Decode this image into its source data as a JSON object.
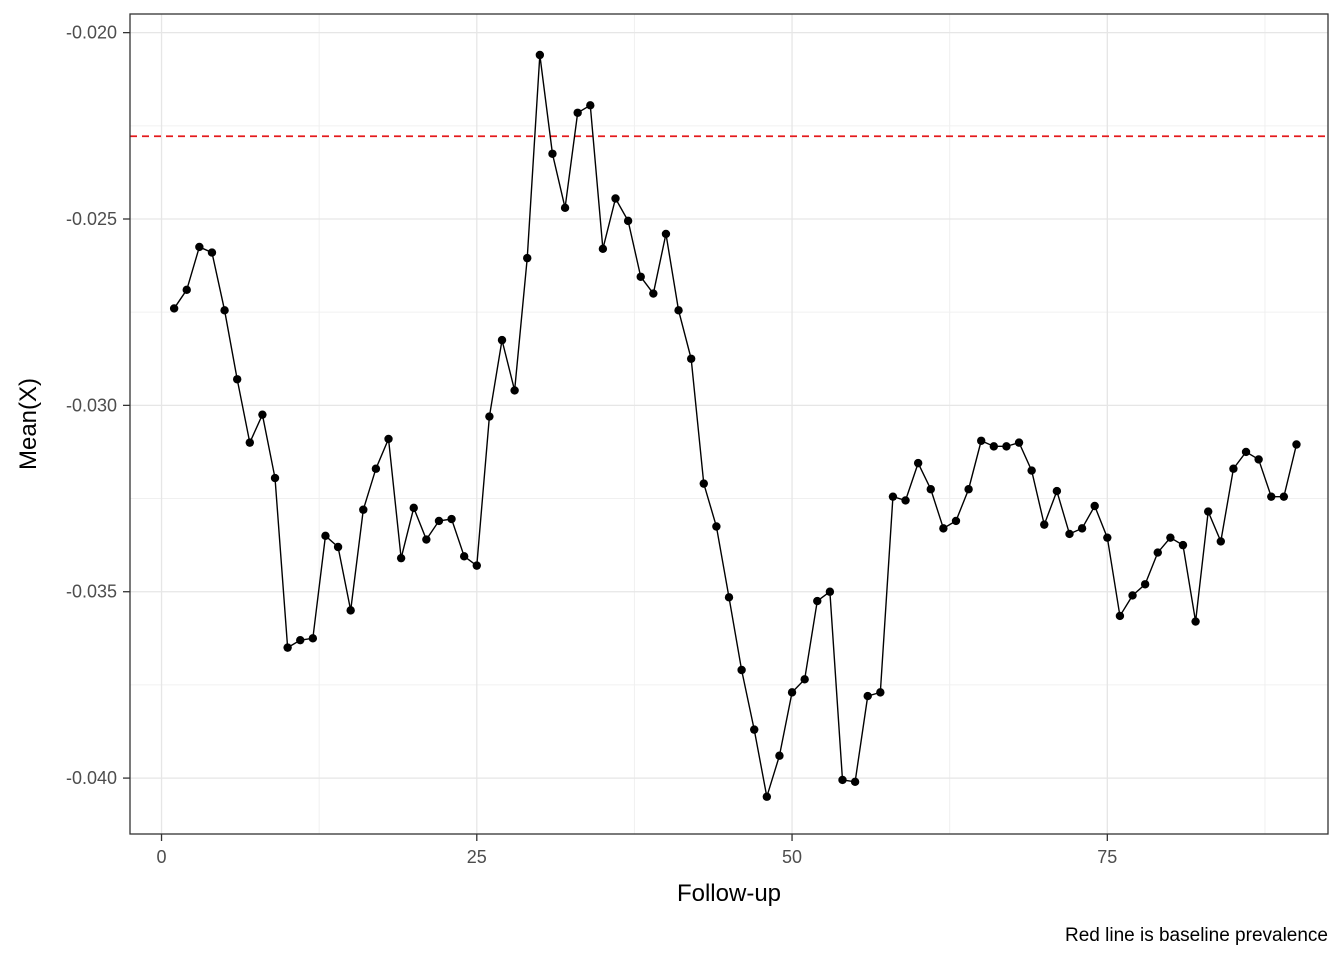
{
  "chart_data": {
    "type": "line",
    "xlabel": "Follow-up",
    "ylabel": "Mean(X)",
    "caption": "Red line is baseline prevalence",
    "xlim": [
      -2.5,
      92.5
    ],
    "ylim": [
      -0.0415,
      -0.0195
    ],
    "x_ticks": [
      0,
      25,
      50,
      75
    ],
    "x_tick_labels": [
      "0",
      "25",
      "50",
      "75"
    ],
    "y_ticks": [
      -0.04,
      -0.035,
      -0.03,
      -0.025,
      -0.02
    ],
    "y_tick_labels": [
      "-0.040",
      "-0.035",
      "-0.030",
      "-0.025",
      "-0.020"
    ],
    "grid": true,
    "line_color": "#000000",
    "baseline": {
      "value": -0.02278,
      "color": "#e41a1c",
      "style": "dashed"
    },
    "series": [
      {
        "x": [
          1,
          2,
          3,
          4,
          5,
          6,
          7,
          8,
          9,
          10,
          11,
          12,
          13,
          14,
          15,
          16,
          17,
          18,
          19,
          20,
          21,
          22,
          23,
          24,
          25,
          26,
          27,
          28,
          29,
          30,
          31,
          32,
          33,
          34,
          35,
          36,
          37,
          38,
          39,
          40,
          41,
          42,
          43,
          44,
          45,
          46,
          47,
          48,
          49,
          50,
          51,
          52,
          53,
          54,
          55,
          56,
          57,
          58,
          59,
          60,
          61,
          62,
          63,
          64,
          65,
          66,
          67,
          68,
          69,
          70,
          71,
          72,
          73,
          74,
          75,
          76,
          77,
          78,
          79,
          80,
          81,
          82,
          83,
          84,
          85,
          86,
          87,
          88,
          89,
          90
        ],
        "values": [
          -0.0274,
          -0.0269,
          -0.02575,
          -0.0259,
          -0.02745,
          -0.0293,
          -0.031,
          -0.03025,
          -0.03195,
          -0.0365,
          -0.0363,
          -0.03625,
          -0.0335,
          -0.0338,
          -0.0355,
          -0.0328,
          -0.0317,
          -0.0309,
          -0.0341,
          -0.03275,
          -0.0336,
          -0.0331,
          -0.03305,
          -0.03405,
          -0.0343,
          -0.0303,
          -0.02825,
          -0.0296,
          -0.02605,
          -0.0206,
          -0.02325,
          -0.0247,
          -0.02215,
          -0.02195,
          -0.0258,
          -0.02445,
          -0.02505,
          -0.02655,
          -0.027,
          -0.0254,
          -0.02745,
          -0.02875,
          -0.0321,
          -0.03325,
          -0.03515,
          -0.0371,
          -0.0387,
          -0.0405,
          -0.0394,
          -0.0377,
          -0.03735,
          -0.03525,
          -0.035,
          -0.04005,
          -0.0401,
          -0.0378,
          -0.0377,
          -0.03245,
          -0.03255,
          -0.03155,
          -0.03225,
          -0.0333,
          -0.0331,
          -0.03225,
          -0.03095,
          -0.0311,
          -0.0311,
          -0.031,
          -0.03175,
          -0.0332,
          -0.0323,
          -0.03345,
          -0.0333,
          -0.0327,
          -0.03355,
          -0.03565,
          -0.0351,
          -0.0348,
          -0.03395,
          -0.03355,
          -0.03375,
          -0.0358,
          -0.03285,
          -0.03365,
          -0.0317,
          -0.03125,
          -0.03145,
          -0.03245,
          -0.03245,
          -0.03105
        ]
      }
    ]
  }
}
